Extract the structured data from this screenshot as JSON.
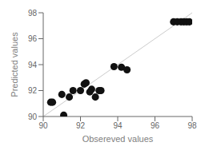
{
  "chart_data": {
    "type": "scatter",
    "xlabel": "Obsereved values",
    "ylabel": "Predicted values",
    "x": [
      90.4,
      90.5,
      91.0,
      91.1,
      91.4,
      91.6,
      92.0,
      92.2,
      92.3,
      92.5,
      92.6,
      92.8,
      93.0,
      93.1,
      93.8,
      94.2,
      94.5,
      97.0,
      97.2,
      97.4,
      97.55,
      97.7,
      97.85
    ],
    "values": [
      91.1,
      91.1,
      91.7,
      90.1,
      91.5,
      92.0,
      92.0,
      92.5,
      92.6,
      91.9,
      92.1,
      91.5,
      92.0,
      92.0,
      93.85,
      93.8,
      93.6,
      97.3,
      97.3,
      97.3,
      97.3,
      97.3,
      97.3
    ],
    "color": "#111111",
    "xlim": [
      90,
      98
    ],
    "ylim": [
      90,
      98
    ],
    "xticks": [
      90,
      92,
      94,
      96,
      98
    ],
    "yticks": [
      90,
      92,
      94,
      96,
      98
    ],
    "grid": false
  }
}
